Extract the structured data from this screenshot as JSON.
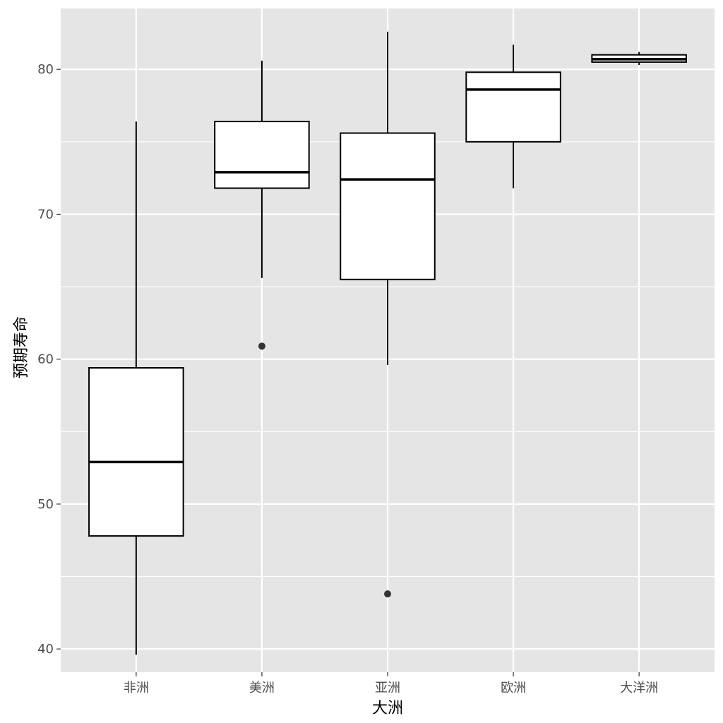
{
  "chart_data": {
    "type": "boxplot",
    "title": "",
    "xlabel": "大洲",
    "ylabel": "预期寿命",
    "ylim": [
      38.4,
      84.2
    ],
    "yticks": [
      40,
      50,
      60,
      70,
      80
    ],
    "y_minor_ticks": [
      45,
      55,
      65,
      75
    ],
    "grid": true,
    "colors": {
      "panel_background": "#e5e5e5",
      "grid": "#ffffff",
      "box_fill": "#ffffff",
      "box_stroke": "#000000",
      "outlier": "#333333",
      "tick_text": "#4d4d4d"
    },
    "categories": [
      "非洲",
      "美洲",
      "亚洲",
      "欧洲",
      "大洋洲"
    ],
    "boxes": [
      {
        "category": "非洲",
        "whisker_low": 39.6,
        "q1": 47.8,
        "median": 52.9,
        "q3": 59.4,
        "whisker_high": 76.4,
        "outliers": []
      },
      {
        "category": "美洲",
        "whisker_low": 65.6,
        "q1": 71.8,
        "median": 72.9,
        "q3": 76.4,
        "whisker_high": 80.6,
        "outliers": [
          60.9
        ]
      },
      {
        "category": "亚洲",
        "whisker_low": 59.6,
        "q1": 65.5,
        "median": 72.4,
        "q3": 75.6,
        "whisker_high": 82.6,
        "outliers": [
          43.8
        ]
      },
      {
        "category": "欧洲",
        "whisker_low": 71.8,
        "q1": 75.0,
        "median": 78.6,
        "q3": 79.8,
        "whisker_high": 81.7,
        "outliers": []
      },
      {
        "category": "大洋洲",
        "whisker_low": 80.3,
        "q1": 80.5,
        "median": 80.7,
        "q3": 81.0,
        "whisker_high": 81.2,
        "outliers": []
      }
    ]
  }
}
